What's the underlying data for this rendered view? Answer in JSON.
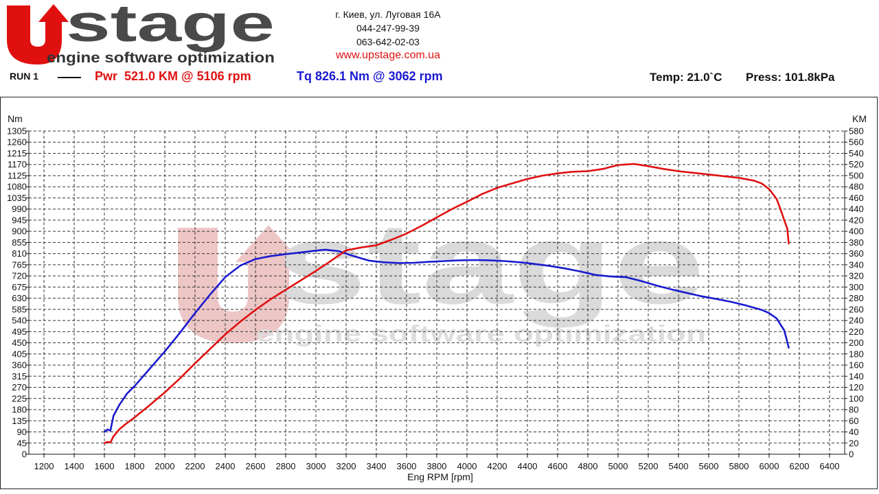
{
  "logo": {
    "brand": "UPstage",
    "name": "stage",
    "tagline": "engine software optimization"
  },
  "contact": {
    "address": "г. Киев, ул. Луговая 16А",
    "phone1": "044-247-99-39",
    "phone2": "063-642-02-03",
    "website": "www.upstage.com.ua"
  },
  "run": {
    "label": "RUN 1",
    "power_summary": "Pwr  521.0 KM @ 5106 rpm",
    "torque_summary": "Tq 826.1 Nm @ 3062 rpm",
    "temperature": "Temp: 21.0`C",
    "pressure": "Press: 101.8kPa"
  },
  "colors": {
    "power": "#e01010",
    "torque": "#1a1ad0",
    "grid": "#333333",
    "watermark_red": "#e8a8a8",
    "watermark_gray": "#c8c8c8"
  },
  "chart_data": {
    "type": "line",
    "title": "",
    "xlabel": "Eng RPM [rpm]",
    "ylabel_left": "Nm",
    "ylabel_right": "KM",
    "xlim": [
      1100,
      6500
    ],
    "x_ticks": [
      1200,
      1400,
      1600,
      1800,
      2000,
      2200,
      2400,
      2600,
      2800,
      3000,
      3200,
      3400,
      3600,
      3800,
      4000,
      4200,
      4400,
      4600,
      4800,
      5000,
      5200,
      5400,
      5600,
      5800,
      6000,
      6200,
      6400
    ],
    "y_left_lim": [
      0,
      1305
    ],
    "y_left_ticks": [
      0,
      45,
      90,
      135,
      180,
      225,
      270,
      315,
      360,
      405,
      450,
      495,
      540,
      585,
      630,
      675,
      720,
      765,
      810,
      855,
      900,
      945,
      990,
      1035,
      1080,
      1125,
      1170,
      1215,
      1260,
      1305
    ],
    "y_right_lim": [
      0,
      580
    ],
    "y_right_ticks": [
      0,
      20,
      40,
      60,
      80,
      100,
      120,
      140,
      160,
      180,
      200,
      220,
      240,
      260,
      280,
      300,
      320,
      340,
      360,
      380,
      400,
      420,
      440,
      460,
      480,
      500,
      520,
      540,
      560,
      580
    ],
    "grid": true,
    "series": [
      {
        "name": "Tq",
        "axis": "left",
        "color": "#1a1ad0",
        "x": [
          1600,
          1620,
          1640,
          1660,
          1700,
          1750,
          1800,
          1900,
          2000,
          2100,
          2200,
          2300,
          2400,
          2500,
          2600,
          2700,
          2800,
          2900,
          3000,
          3062,
          3150,
          3250,
          3350,
          3450,
          3550,
          3650,
          3750,
          3850,
          3950,
          4050,
          4150,
          4250,
          4350,
          4450,
          4550,
          4650,
          4750,
          4850,
          4950,
          5050,
          5150,
          5250,
          5350,
          5450,
          5550,
          5650,
          5750,
          5850,
          5950,
          6000,
          6050,
          6100,
          6130
        ],
        "y": [
          90,
          100,
          95,
          155,
          200,
          245,
          275,
          345,
          415,
          490,
          570,
          645,
          715,
          762,
          788,
          800,
          808,
          815,
          822,
          826,
          820,
          800,
          782,
          775,
          772,
          773,
          777,
          780,
          783,
          784,
          783,
          780,
          775,
          768,
          760,
          750,
          738,
          724,
          718,
          715,
          700,
          682,
          666,
          652,
          638,
          627,
          615,
          600,
          583,
          570,
          548,
          500,
          430
        ]
      },
      {
        "name": "Pwr",
        "axis": "right",
        "color": "#e01010",
        "x": [
          1600,
          1620,
          1640,
          1660,
          1700,
          1750,
          1800,
          1900,
          2000,
          2100,
          2200,
          2300,
          2400,
          2500,
          2600,
          2700,
          2800,
          2900,
          3000,
          3100,
          3200,
          3300,
          3400,
          3500,
          3600,
          3700,
          3800,
          3900,
          4000,
          4100,
          4200,
          4300,
          4400,
          4500,
          4600,
          4700,
          4800,
          4900,
          5000,
          5106,
          5200,
          5300,
          5400,
          5500,
          5600,
          5700,
          5800,
          5900,
          5950,
          6000,
          6050,
          6080,
          6100,
          6120,
          6130
        ],
        "y": [
          20,
          22,
          21,
          32,
          45,
          56,
          66,
          88,
          111,
          136,
          163,
          189,
          215,
          238,
          259,
          278,
          295,
          312,
          329,
          347,
          366,
          371,
          375,
          385,
          396,
          410,
          425,
          440,
          453,
          467,
          478,
          486,
          494,
          500,
          504,
          507,
          508,
          512,
          519,
          521,
          517,
          512,
          508,
          505,
          502,
          499,
          496,
          491,
          486,
          476,
          458,
          436,
          420,
          405,
          378
        ]
      }
    ]
  }
}
